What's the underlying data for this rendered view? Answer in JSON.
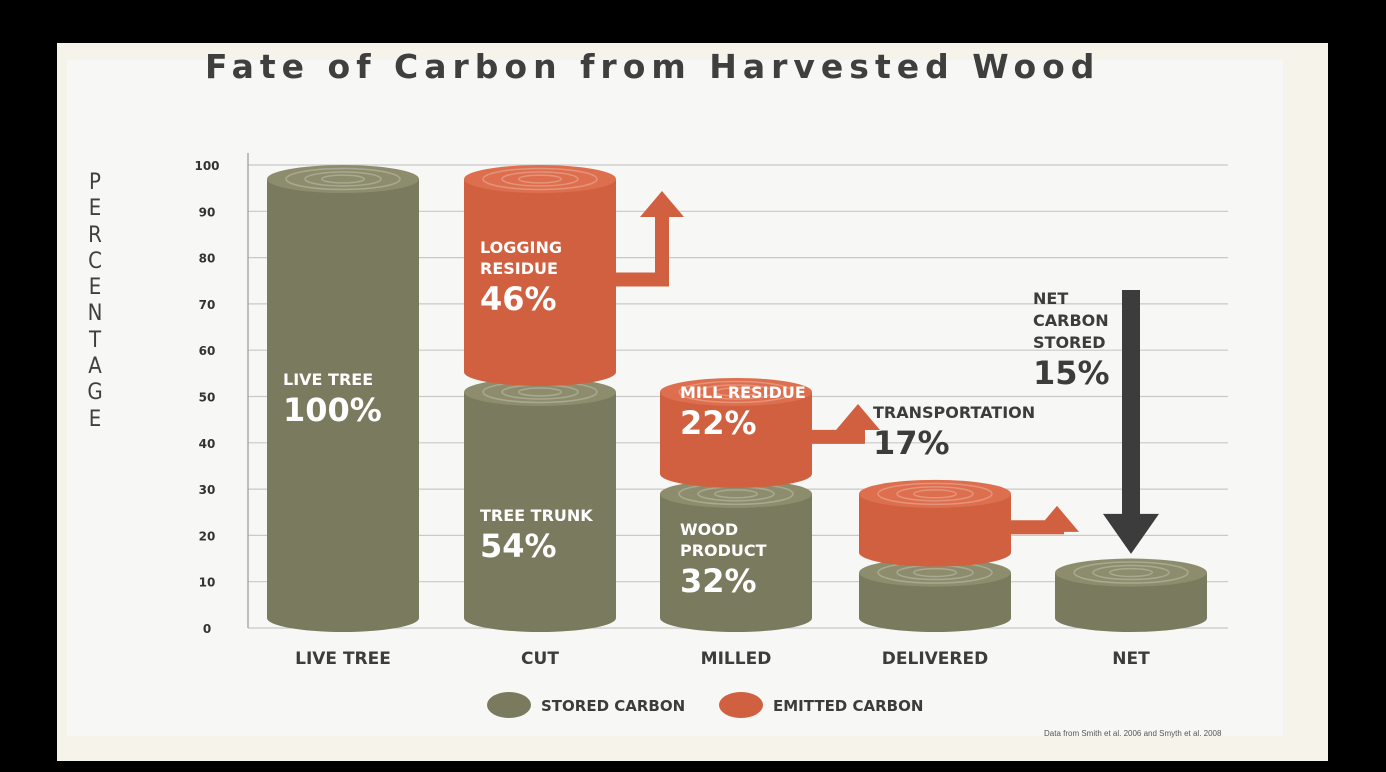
{
  "chart_data": {
    "type": "bar",
    "title": "Fate of Carbon from Harvested Wood",
    "ylabel": "Percentage",
    "ylim": [
      0,
      100
    ],
    "yticks": [
      "0",
      "10",
      "20",
      "30",
      "40",
      "50",
      "60",
      "70",
      "80",
      "90",
      "100"
    ],
    "categories": [
      "Live Tree",
      "Cut",
      "Milled",
      "Delivered",
      "Net"
    ],
    "series": [
      {
        "name": "Stored Carbon",
        "color": "#7a7a5e",
        "values": [
          100,
          54,
          32,
          15,
          15
        ]
      },
      {
        "name": "Emitted Carbon",
        "color": "#d0603f",
        "values": [
          0,
          46,
          22,
          17,
          0
        ]
      }
    ],
    "bar_labels": [
      {
        "lines": [
          "Live Tree",
          "100%"
        ]
      },
      {
        "lines": [
          "Tree Trunk",
          "54%"
        ]
      },
      {
        "lines": [
          "Wood",
          "Product",
          "32%"
        ]
      },
      {
        "lines": [
          "Logging",
          "Residue",
          "46%"
        ]
      },
      {
        "lines": [
          "Mill Residue",
          "22%"
        ]
      },
      {
        "lines": [
          "Transportation",
          "17%"
        ]
      }
    ],
    "annotation": {
      "lines": [
        "Net",
        "Carbon",
        "Stored",
        "15%"
      ]
    },
    "legend": [
      "Stored Carbon",
      "Emitted Carbon"
    ],
    "legend_placement": "bottom-center",
    "grid": true,
    "source_note": "Data from Smith et al. 2006 and Smyth et al. 2008"
  }
}
